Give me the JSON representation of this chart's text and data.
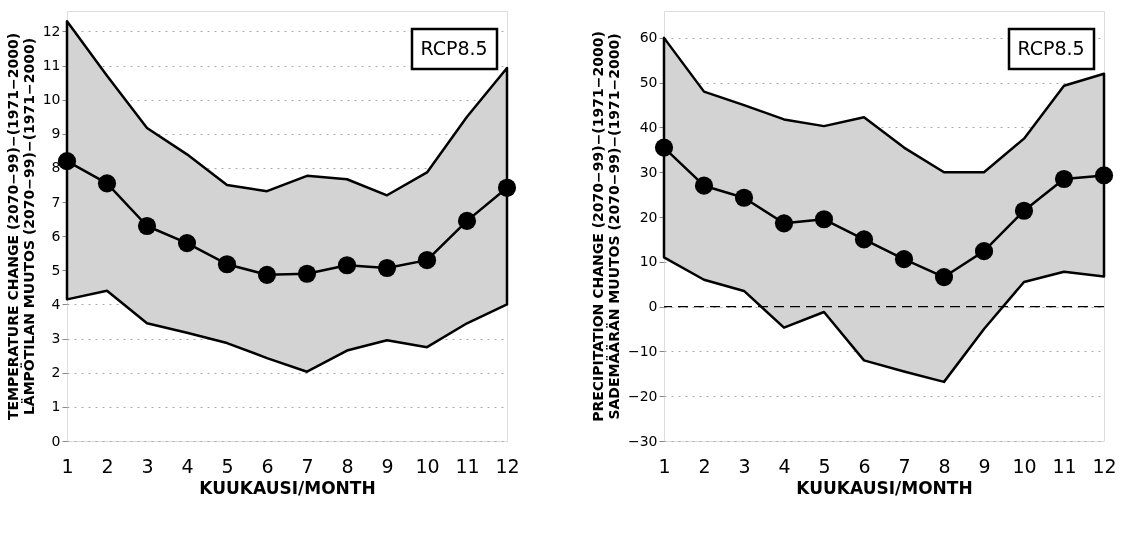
{
  "chart_data": [
    {
      "type": "line",
      "xlabel": "KUUKAUSI/MONTH",
      "ylabel": "TEMPERATURE CHANGE (2070−99)−(1971−2000)\nLÄMPÖTILAN MUUTOS (2070−99)−(1971−2000)",
      "annotations": [
        "RCP8.5"
      ],
      "x": [
        1,
        2,
        3,
        4,
        5,
        6,
        7,
        8,
        9,
        10,
        11,
        12
      ],
      "series": [
        {
          "color": "#000000",
          "values": [
            8.2,
            7.55,
            6.3,
            5.8,
            5.18,
            4.87,
            4.9,
            5.15,
            5.07,
            5.3,
            6.45,
            7.42
          ],
          "lower": [
            4.15,
            4.4,
            3.45,
            3.17,
            2.87,
            2.43,
            2.03,
            2.65,
            2.95,
            2.75,
            3.45,
            4.0
          ],
          "upper": [
            12.3,
            10.7,
            9.17,
            8.4,
            7.5,
            7.32,
            7.77,
            7.67,
            7.2,
            7.87,
            9.5,
            10.93
          ]
        }
      ],
      "xlim": [
        1,
        12
      ],
      "xticks": [
        1,
        2,
        3,
        4,
        5,
        6,
        7,
        8,
        9,
        10,
        11,
        12
      ],
      "ylim": [
        0,
        12.6
      ],
      "yticks": [
        0,
        1,
        2,
        3,
        4,
        5,
        6,
        7,
        8,
        9,
        10,
        11,
        12
      ],
      "grid": "y",
      "marker": "circle",
      "line_style": "solid"
    },
    {
      "type": "line",
      "xlabel": "KUUKAUSI/MONTH",
      "ylabel": "PRECIPITATION CHANGE (2070−99)−(1971−2000)\nSADEMÄÄRÄN MUUTOS (2070−99)−(1971−2000)",
      "annotations": [
        "RCP8.5"
      ],
      "x": [
        1,
        2,
        3,
        4,
        5,
        6,
        7,
        8,
        9,
        10,
        11,
        12
      ],
      "series": [
        {
          "color": "#000000",
          "values": [
            35.5,
            27,
            24.3,
            18.6,
            19.5,
            15,
            10.6,
            6.6,
            12.4,
            21.4,
            28.5,
            29.3
          ],
          "lower": [
            11,
            6,
            3.5,
            -4.7,
            -1.2,
            -12,
            -14.5,
            -16.8,
            -5,
            5.5,
            7.8,
            6.7
          ],
          "upper": [
            60,
            48,
            45,
            41.8,
            40.3,
            42.3,
            35.5,
            30,
            30,
            37.5,
            49.3,
            52
          ]
        }
      ],
      "xlim": [
        1,
        12
      ],
      "xticks": [
        1,
        2,
        3,
        4,
        5,
        6,
        7,
        8,
        9,
        10,
        11,
        12
      ],
      "ylim": [
        -30,
        66
      ],
      "yticks": [
        -30,
        -20,
        -10,
        0,
        10,
        20,
        30,
        40,
        50,
        60
      ],
      "ref_lines": [
        {
          "axis": "y",
          "value": 0,
          "color": "#000000",
          "line_style": "dashed"
        }
      ],
      "grid": "y",
      "marker": "circle",
      "line_style": "solid"
    }
  ]
}
